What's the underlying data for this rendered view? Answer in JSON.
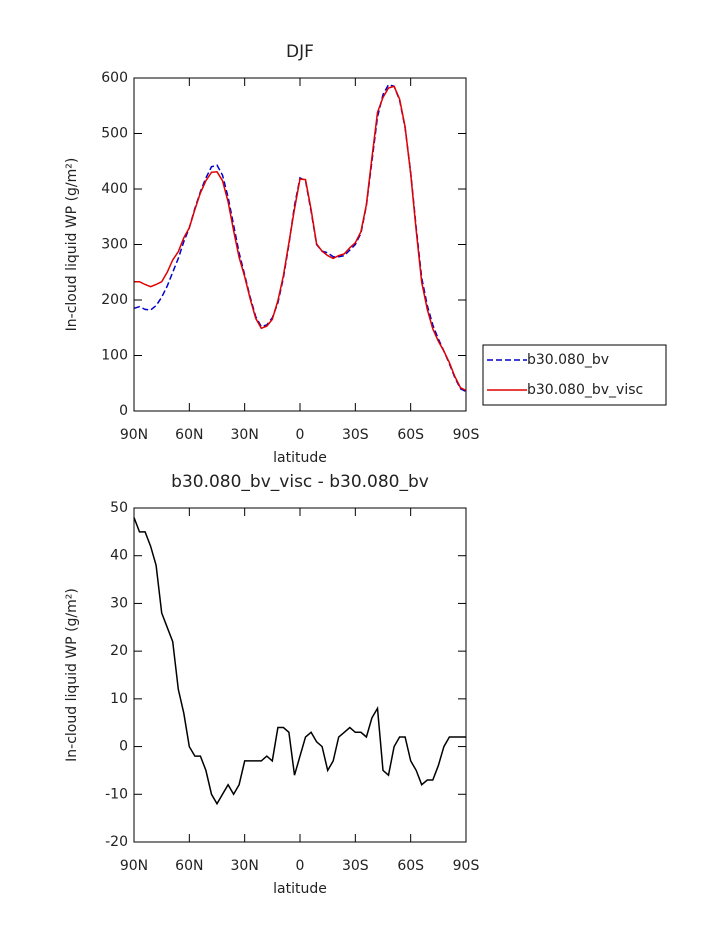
{
  "chart_data": [
    {
      "type": "line",
      "title": "DJF",
      "xlabel": "latitude",
      "ylabel": "In-cloud liquid WP (g/m²)",
      "x": [
        90,
        87,
        84,
        81,
        78,
        75,
        72,
        69,
        66,
        63,
        60,
        57,
        54,
        51,
        48,
        45,
        42,
        39,
        36,
        33,
        30,
        27,
        24,
        21,
        18,
        15,
        12,
        9,
        6,
        3,
        0,
        -3,
        -6,
        -9,
        -12,
        -15,
        -18,
        -21,
        -24,
        -27,
        -30,
        -33,
        -36,
        -39,
        -42,
        -45,
        -48,
        -51,
        -54,
        -57,
        -60,
        -63,
        -66,
        -69,
        -72,
        -75,
        -78,
        -81,
        -84,
        -87,
        -90
      ],
      "xlim": [
        90,
        -90
      ],
      "xticks": [
        {
          "value": 90,
          "label": "90N"
        },
        {
          "value": 60,
          "label": "60N"
        },
        {
          "value": 30,
          "label": "30N"
        },
        0,
        {
          "value": -30,
          "label": "30S"
        },
        {
          "value": -60,
          "label": "60S"
        },
        {
          "value": -90,
          "label": "90S"
        }
      ],
      "ylim": [
        0,
        600
      ],
      "yticks": [
        0,
        100,
        200,
        300,
        400,
        500,
        600
      ],
      "legend": "right",
      "series": [
        {
          "name": "b30.080_bv",
          "color": "#0000cc",
          "style": "dashed",
          "values": [
            185,
            188,
            183,
            182,
            190,
            205,
            225,
            250,
            275,
            305,
            330,
            365,
            395,
            420,
            440,
            443,
            425,
            385,
            335,
            285,
            245,
            205,
            170,
            152,
            155,
            168,
            195,
            240,
            300,
            370,
            420,
            415,
            360,
            300,
            288,
            285,
            278,
            278,
            280,
            290,
            300,
            320,
            370,
            450,
            530,
            570,
            588,
            585,
            560,
            510,
            430,
            330,
            240,
            190,
            155,
            130,
            108,
            85,
            60,
            40,
            35
          ]
        },
        {
          "name": "b30.080_bv_visc",
          "color": "#e00000",
          "style": "solid",
          "values": [
            233,
            233,
            228,
            224,
            228,
            233,
            250,
            272,
            287,
            312,
            330,
            363,
            393,
            415,
            430,
            431,
            415,
            377,
            325,
            277,
            242,
            202,
            167,
            149,
            153,
            165,
            199,
            244,
            303,
            364,
            418,
            417,
            363,
            301,
            288,
            280,
            275,
            280,
            283,
            294,
            303,
            323,
            372,
            456,
            538,
            565,
            582,
            585,
            562,
            512,
            427,
            325,
            232,
            183,
            148,
            126,
            108,
            87,
            62,
            42,
            37
          ]
        }
      ]
    },
    {
      "type": "line",
      "title": "b30.080_bv_visc - b30.080_bv",
      "xlabel": "latitude",
      "ylabel": "In-cloud liquid WP (g/m²)",
      "x": [
        90,
        87,
        84,
        81,
        78,
        75,
        72,
        69,
        66,
        63,
        60,
        57,
        54,
        51,
        48,
        45,
        42,
        39,
        36,
        33,
        30,
        27,
        24,
        21,
        18,
        15,
        12,
        9,
        6,
        3,
        0,
        -3,
        -6,
        -9,
        -12,
        -15,
        -18,
        -21,
        -24,
        -27,
        -30,
        -33,
        -36,
        -39,
        -42,
        -45,
        -48,
        -51,
        -54,
        -57,
        -60,
        -63,
        -66,
        -69,
        -72,
        -75,
        -78,
        -81,
        -84,
        -87,
        -90
      ],
      "xlim": [
        90,
        -90
      ],
      "xticks": [
        {
          "value": 90,
          "label": "90N"
        },
        {
          "value": 60,
          "label": "60N"
        },
        {
          "value": 30,
          "label": "30N"
        },
        0,
        {
          "value": -30,
          "label": "30S"
        },
        {
          "value": -60,
          "label": "60S"
        },
        {
          "value": -90,
          "label": "90S"
        }
      ],
      "ylim": [
        -20,
        50
      ],
      "yticks": [
        -20,
        -10,
        0,
        10,
        20,
        30,
        40,
        50
      ],
      "series": [
        {
          "color": "#000000",
          "style": "solid",
          "values": [
            48,
            45,
            45,
            42,
            38,
            28,
            25,
            22,
            12,
            7,
            0,
            -2,
            -2,
            -5,
            -10,
            -12,
            -10,
            -8,
            -10,
            -8,
            -3,
            -3,
            -3,
            -3,
            -2,
            -3,
            4,
            4,
            3,
            -6,
            -2,
            2,
            3,
            1,
            0,
            -5,
            -3,
            2,
            3,
            4,
            3,
            3,
            2,
            6,
            8,
            -5,
            -6,
            0,
            2,
            2,
            -3,
            -5,
            -8,
            -7,
            -7,
            -4,
            0,
            2,
            2,
            2,
            2
          ]
        }
      ]
    }
  ]
}
